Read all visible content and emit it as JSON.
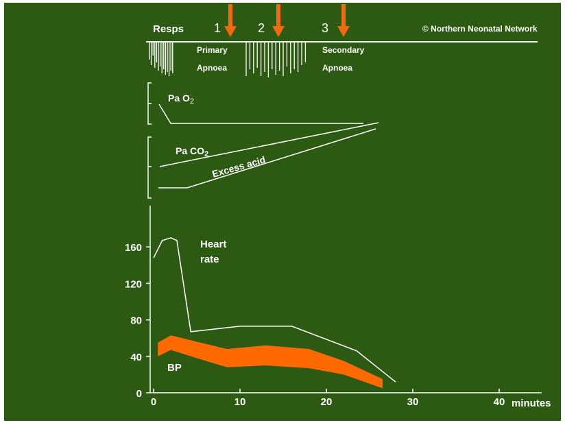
{
  "copyright": "© Northern Neonatal Network",
  "colors": {
    "background": "#2d5a12",
    "foreground": "#ffffff",
    "arrow": "#f06a10",
    "bp_band": "#ff6a00"
  },
  "resps": {
    "label": "Resps",
    "primary_line1": "Primary",
    "primary_line2": "Apnoea",
    "secondary_line1": "Secondary",
    "secondary_line2": "Apnoea",
    "arrows": [
      {
        "label": "1",
        "minute": 9
      },
      {
        "label": "2",
        "minute": 14.5
      },
      {
        "label": "3",
        "minute": 22
      }
    ]
  },
  "pao2": {
    "label_main": "Pa O",
    "label_sub": "2"
  },
  "paco2": {
    "label_main": "Pa CO",
    "label_sub": "2"
  },
  "excess_acid": {
    "label": "Excess acid"
  },
  "chart_data": {
    "type": "line",
    "xlabel": "minutes",
    "ylabel": "",
    "xlim": [
      0,
      45
    ],
    "ylim": [
      0,
      170
    ],
    "x_ticks": [
      "0",
      "10",
      "20",
      "30",
      "40"
    ],
    "y_ticks": [
      "0",
      "40",
      "80",
      "120",
      "160"
    ],
    "series": [
      {
        "name": "Heart rate",
        "name_line1": "Heart",
        "name_line2": "rate",
        "x": [
          0,
          1,
          2,
          2.7,
          4.3,
          10,
          16,
          23.5,
          28
        ],
        "y": [
          148,
          167,
          170,
          167,
          67,
          73,
          73,
          46,
          12
        ]
      },
      {
        "name": "BP",
        "type": "band",
        "x": [
          0.5,
          2,
          5,
          8.5,
          13,
          18,
          22,
          26.5
        ],
        "upper": [
          55,
          63,
          56,
          48,
          52,
          48,
          35,
          15
        ],
        "lower": [
          40,
          47,
          38,
          28,
          30,
          27,
          20,
          5
        ]
      }
    ]
  }
}
